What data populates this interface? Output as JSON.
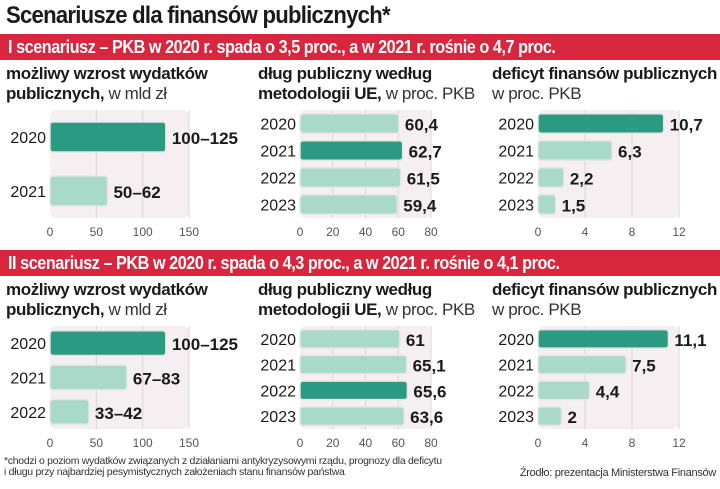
{
  "title": "Scenariusze dla finansów publicznych*",
  "colors": {
    "banner": "#d7263d",
    "highlight_bar": "#2a9a82",
    "normal_bar": "#a9d9c8",
    "plot_bg": "#f5eff1",
    "grid": "#dcd4d8"
  },
  "footnote_line1": "*chodzi o poziom wydatków związanych z działaniami antykryzysowymi rządu, prognozy dla deficytu",
  "footnote_line2": "i długu przy najbardziej pesymistycznych założeniach stanu finansów państwa",
  "source": "Źrodło: prezentacja Ministerstwa Finansów",
  "scenarios": [
    {
      "banner": "I scenariusz – PKB w 2020 r. spada o 3,5 proc., a w 2021 r. rośnie o 4,7 proc.",
      "panels": [
        {
          "head_bold": "możliwy wzrost wydatków",
          "head_bold2": "publicznych,",
          "head_light": " w mld zł"
        },
        {
          "head_bold": "dług publiczny według",
          "head_bold2": "metodologii UE,",
          "head_light": " w proc. PKB"
        },
        {
          "head_bold": "deficyt finansów publicznych",
          "head_bold2": "",
          "head_light": "w proc. PKB"
        }
      ]
    },
    {
      "banner": "II scenariusz – PKB w 2020 r. spada o 4,3 proc., a w 2021 r. rośnie o 4,1 proc.",
      "panels": [
        {
          "head_bold": "możliwy wzrost wydatków",
          "head_bold2": "publicznych,",
          "head_light": " w mld zł"
        },
        {
          "head_bold": "dług publiczny według",
          "head_bold2": "metodologii UE,",
          "head_light": " w proc. PKB"
        },
        {
          "head_bold": "deficyt finansów publicznych",
          "head_bold2": "",
          "head_light": "w proc. PKB"
        }
      ]
    }
  ],
  "chart_data": [
    {
      "type": "bar",
      "orientation": "horizontal",
      "scenario": "I",
      "title": "możliwy wzrost wydatków publicznych, w mld zł",
      "categories": [
        "2020",
        "2021"
      ],
      "values": [
        125,
        62
      ],
      "labels": [
        "100–125",
        "50–62"
      ],
      "highlight": [
        0
      ],
      "xlim": [
        0,
        150
      ],
      "xticks": [
        "0",
        "50",
        "100",
        "150"
      ],
      "tick_values": [
        0,
        50,
        100,
        150
      ],
      "grid": true
    },
    {
      "type": "bar",
      "orientation": "horizontal",
      "scenario": "I",
      "title": "dług publiczny według metodologii UE, w proc. PKB",
      "categories": [
        "2020",
        "2021",
        "2022",
        "2023"
      ],
      "values": [
        60.4,
        62.7,
        61.5,
        59.4
      ],
      "labels": [
        "60,4",
        "62,7",
        "61,5",
        "59,4"
      ],
      "highlight": [
        1
      ],
      "xlim": [
        0,
        80
      ],
      "xticks": [
        "0",
        "20",
        "40",
        "60",
        "80"
      ],
      "tick_values": [
        0,
        20,
        40,
        60,
        80
      ],
      "grid": true
    },
    {
      "type": "bar",
      "orientation": "horizontal",
      "scenario": "I",
      "title": "deficyt finansów publicznych w proc. PKB",
      "categories": [
        "2020",
        "2021",
        "2022",
        "2023"
      ],
      "values": [
        10.7,
        6.3,
        2.2,
        1.5
      ],
      "labels": [
        "10,7",
        "6,3",
        "2,2",
        "1,5"
      ],
      "highlight": [
        0
      ],
      "xlim": [
        0,
        12
      ],
      "xticks": [
        "0",
        "4",
        "8",
        "12"
      ],
      "tick_values": [
        0,
        4,
        8,
        12
      ],
      "grid": true
    },
    {
      "type": "bar",
      "orientation": "horizontal",
      "scenario": "II",
      "title": "możliwy wzrost wydatków publicznych, w mld zł",
      "categories": [
        "2020",
        "2021",
        "2022"
      ],
      "values": [
        125,
        83,
        42
      ],
      "labels": [
        "100–125",
        "67–83",
        "33–42"
      ],
      "highlight": [
        0
      ],
      "xlim": [
        0,
        150
      ],
      "xticks": [
        "0",
        "50",
        "100",
        "150"
      ],
      "tick_values": [
        0,
        50,
        100,
        150
      ],
      "grid": true
    },
    {
      "type": "bar",
      "orientation": "horizontal",
      "scenario": "II",
      "title": "dług publiczny według metodologii UE, w proc. PKB",
      "categories": [
        "2020",
        "2021",
        "2022",
        "2023"
      ],
      "values": [
        61,
        65.1,
        65.6,
        63.6
      ],
      "labels": [
        "61",
        "65,1",
        "65,6",
        "63,6"
      ],
      "highlight": [
        2
      ],
      "xlim": [
        0,
        80
      ],
      "xticks": [
        "0",
        "20",
        "40",
        "60",
        "80"
      ],
      "tick_values": [
        0,
        20,
        40,
        60,
        80
      ],
      "grid": true
    },
    {
      "type": "bar",
      "orientation": "horizontal",
      "scenario": "II",
      "title": "deficyt finansów publicznych w proc. PKB",
      "categories": [
        "2020",
        "2021",
        "2022",
        "2023"
      ],
      "values": [
        11.1,
        7.5,
        4.4,
        2
      ],
      "labels": [
        "11,1",
        "7,5",
        "4,4",
        "2"
      ],
      "highlight": [
        0
      ],
      "xlim": [
        0,
        12
      ],
      "xticks": [
        "0",
        "4",
        "8",
        "12"
      ],
      "tick_values": [
        0,
        4,
        8,
        12
      ],
      "grid": true
    }
  ]
}
